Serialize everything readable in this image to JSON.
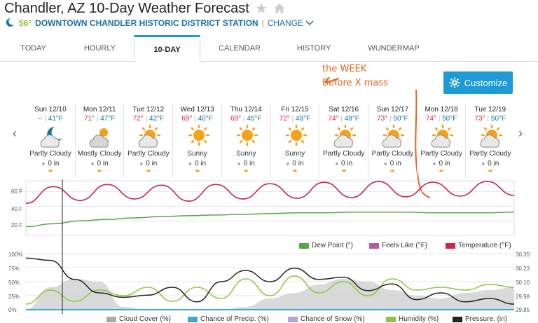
{
  "header": {
    "title": "Chandler, AZ 10-Day Weather Forecast",
    "current_temp": "56°",
    "station": "DOWNTOWN CHANDLER HISTORIC DISTRICT STATION",
    "separator": "|",
    "change_label": "CHANGE"
  },
  "tabs": [
    {
      "label": "TODAY",
      "active": false
    },
    {
      "label": "HOURLY",
      "active": false
    },
    {
      "label": "10-DAY",
      "active": true
    },
    {
      "label": "CALENDAR",
      "active": false
    },
    {
      "label": "HISTORY",
      "active": false
    },
    {
      "label": "WUNDERMAP",
      "active": false
    }
  ],
  "customize_label": "Customize",
  "annotation": {
    "line1": "the WEEK",
    "line2": "Before X mass"
  },
  "days": [
    {
      "name": "Sun 12/10",
      "hi": "--",
      "lo": "41°F",
      "icon": "partly-cloudy-night",
      "cond": "Partly Cloudy",
      "precip": "0 in"
    },
    {
      "name": "Mon 12/11",
      "hi": "71°",
      "lo": "47°F",
      "icon": "mostly-cloudy",
      "cond": "Mostly Cloudy",
      "precip": "0 in"
    },
    {
      "name": "Tue 12/12",
      "hi": "72°",
      "lo": "42°F",
      "icon": "partly-cloudy",
      "cond": "Partly Cloudy",
      "precip": "0 in"
    },
    {
      "name": "Wed 12/13",
      "hi": "69°",
      "lo": "40°F",
      "icon": "sunny",
      "cond": "Sunny",
      "precip": "0 in"
    },
    {
      "name": "Thu 12/14",
      "hi": "69°",
      "lo": "45°F",
      "icon": "sunny",
      "cond": "Sunny",
      "precip": "0 in"
    },
    {
      "name": "Fri 12/15",
      "hi": "72°",
      "lo": "48°F",
      "icon": "sunny",
      "cond": "Sunny",
      "precip": "0 in"
    },
    {
      "name": "Sat 12/16",
      "hi": "74°",
      "lo": "48°F",
      "icon": "partly-cloudy",
      "cond": "Partly Cloudy",
      "precip": "0 in"
    },
    {
      "name": "Sun 12/17",
      "hi": "73°",
      "lo": "50°F",
      "icon": "partly-cloudy",
      "cond": "Partly Cloudy",
      "precip": "0 in"
    },
    {
      "name": "Mon 12/18",
      "hi": "74°",
      "lo": "50°F",
      "icon": "partly-cloudy",
      "cond": "Partly Cloudy",
      "precip": "0 in"
    },
    {
      "name": "Tue 12/19",
      "hi": "73°",
      "lo": "50°F",
      "icon": "partly-cloudy",
      "cond": "Partly Cloudy",
      "precip": "0 in"
    }
  ],
  "temp_chart": {
    "y_ticks": [
      "60 F",
      "40 F",
      "20 F"
    ],
    "legend": [
      {
        "label": "Dew Point (°)",
        "color": "#57a64a"
      },
      {
        "label": "Feels Like (°F)",
        "color": "#b259a8"
      },
      {
        "label": "Temperature (°F)",
        "color": "#cc2844"
      }
    ],
    "temperature_f": [
      44,
      67,
      48,
      70,
      50,
      69,
      47,
      70,
      50,
      71,
      51,
      73,
      52,
      74,
      53,
      73,
      54,
      74,
      55
    ],
    "dew_point_f": [
      12,
      16,
      20,
      22,
      24,
      26,
      27,
      28,
      29,
      30,
      31,
      31,
      32,
      32,
      32,
      31,
      31,
      31,
      32
    ],
    "ylim": [
      0,
      75
    ]
  },
  "percent_chart": {
    "y_left": [
      "100%",
      "75%",
      "50%",
      "25%",
      "0%"
    ],
    "y_right": [
      "30.35",
      "30.23",
      "30.10",
      "29.98",
      "29.85"
    ],
    "legend": [
      {
        "label": "Cloud Cover (%)",
        "color": "#aaaaaa"
      },
      {
        "label": "Chance of Precip. (%)",
        "color": "#3aa8d8"
      },
      {
        "label": "Chance of Snow (%)",
        "color": "#b9a3d6"
      },
      {
        "label": "Humidity (%)",
        "color": "#8cc63f"
      },
      {
        "label": "Pressure. (in)",
        "color": "#222222"
      }
    ],
    "cloud_cover_pct": [
      0,
      40,
      55,
      50,
      5,
      0,
      0,
      0,
      0,
      5,
      20,
      30,
      45,
      55,
      50,
      35,
      25,
      20,
      30,
      35,
      40
    ],
    "humidity_pct": [
      10,
      35,
      15,
      35,
      25,
      40,
      15,
      40,
      20,
      55,
      25,
      60,
      30,
      50,
      25,
      55,
      35,
      40,
      35,
      45,
      40
    ],
    "pressure_in": [
      30.31,
      30.29,
      30.12,
      30.0,
      29.96,
      29.98,
      30.05,
      29.92,
      30.1,
      30.2,
      30.1,
      30.22,
      30.12,
      30.14,
      30.02,
      30.08,
      29.94,
      30.0,
      29.92,
      29.95,
      29.9
    ]
  }
}
